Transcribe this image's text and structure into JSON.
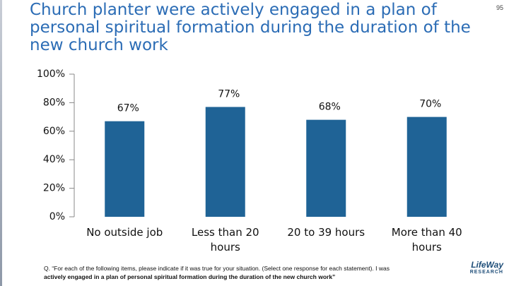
{
  "page_number": "95",
  "chart_data": {
    "type": "bar",
    "title": "Church planter were actively engaged in a plan of personal spiritual formation during the duration of the new church work",
    "categories": [
      "No outside job",
      "Less than 20 hours",
      "20 to 39 hours",
      "More than 40 hours"
    ],
    "values": [
      67,
      77,
      68,
      70
    ],
    "value_labels": [
      "67%",
      "77%",
      "68%",
      "70%"
    ],
    "color": "#1f6396",
    "ylim": [
      0,
      100
    ],
    "yticks": [
      {
        "value": 0,
        "label": "0%"
      },
      {
        "value": 20,
        "label": "20%"
      },
      {
        "value": 40,
        "label": "40%"
      },
      {
        "value": 60,
        "label": "60%"
      },
      {
        "value": 80,
        "label": "80%"
      },
      {
        "value": 100,
        "label": "100%"
      }
    ],
    "grid": false
  },
  "note": {
    "text": "Q. “For each of the following items, please indicate if it was true for your situation. (Select one response for each statement). I was",
    "bold": "actively engaged in a plan of personal spiritual formation during the duration of the new church work”"
  },
  "logo": {
    "name": "LifeWay",
    "sub": "RESEARCH"
  }
}
